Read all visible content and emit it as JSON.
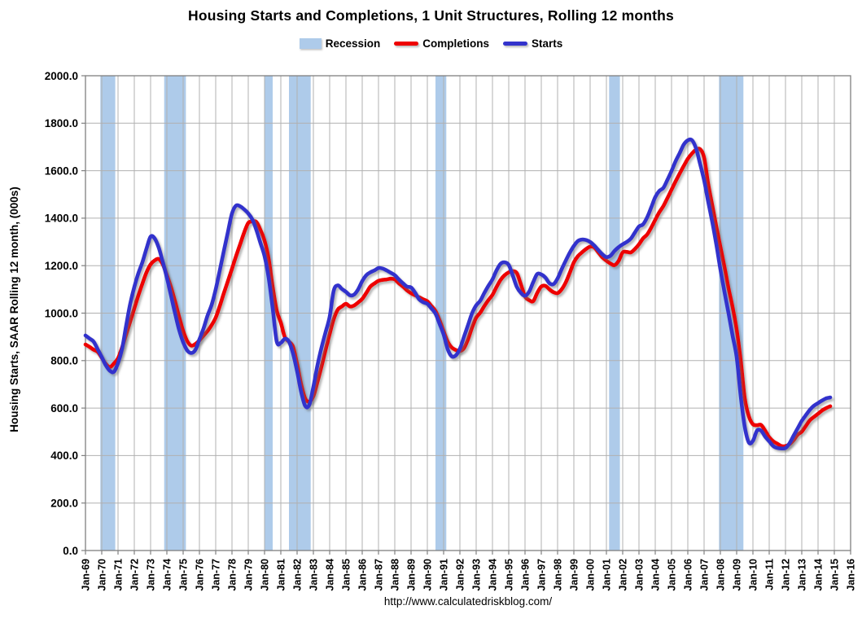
{
  "title": "Housing Starts and Completions, 1 Unit Structures, Rolling 12 months",
  "source_url": "http://www.calculatedriskblog.com/",
  "legend": {
    "items": [
      {
        "label": "Recession",
        "swatch": "box"
      },
      {
        "label": "Completions",
        "swatch": "line-red"
      },
      {
        "label": "Starts",
        "swatch": "line-blue"
      }
    ]
  },
  "colors": {
    "starts": "#3333CC",
    "completions": "#EE0000",
    "recession": "#AECBEA",
    "grid": "#B0B0B0",
    "border": "#808080",
    "text": "#000000"
  },
  "chart_data": {
    "type": "line",
    "title": "Housing Starts and Completions, 1 Unit Structures, Rolling 12 months",
    "xlabel": "",
    "ylabel": "Housing Starts, SAAR Rolling 12 month, (000s)",
    "xlim": [
      1969,
      2016
    ],
    "ylim": [
      0,
      2000
    ],
    "grid": true,
    "legend_position": "top",
    "y_ticks": [
      0,
      200,
      400,
      600,
      800,
      1000,
      1200,
      1400,
      1600,
      1800,
      2000
    ],
    "y_tick_labels": [
      "0.0",
      "200.0",
      "400.0",
      "600.0",
      "800.0",
      "1000.0",
      "1200.0",
      "1400.0",
      "1600.0",
      "1800.0",
      "2000.0"
    ],
    "x_ticks_years": [
      1969,
      1970,
      1971,
      1972,
      1973,
      1974,
      1975,
      1976,
      1977,
      1978,
      1979,
      1980,
      1981,
      1982,
      1983,
      1984,
      1985,
      1986,
      1987,
      1988,
      1989,
      1990,
      1991,
      1992,
      1993,
      1994,
      1995,
      1996,
      1997,
      1998,
      1999,
      2000,
      2001,
      2002,
      2003,
      2004,
      2005,
      2006,
      2007,
      2008,
      2009,
      2010,
      2011,
      2012,
      2013,
      2014,
      2015,
      2016
    ],
    "x_tick_labels": [
      "Jan-69",
      "Jan-70",
      "Jan-71",
      "Jan-72",
      "Jan-73",
      "Jan-74",
      "Jan-75",
      "Jan-76",
      "Jan-77",
      "Jan-78",
      "Jan-79",
      "Jan-80",
      "Jan-81",
      "Jan-82",
      "Jan-83",
      "Jan-84",
      "Jan-85",
      "Jan-86",
      "Jan-87",
      "Jan-88",
      "Jan-89",
      "Jan-90",
      "Jan-91",
      "Jan-92",
      "Jan-93",
      "Jan-94",
      "Jan-95",
      "Jan-96",
      "Jan-97",
      "Jan-98",
      "Jan-99",
      "Jan-00",
      "Jan-01",
      "Jan-02",
      "Jan-03",
      "Jan-04",
      "Jan-05",
      "Jan-06",
      "Jan-07",
      "Jan-08",
      "Jan-09",
      "Jan-10",
      "Jan-11",
      "Jan-12",
      "Jan-13",
      "Jan-14",
      "Jan-15",
      "Jan-16"
    ],
    "recession_bands": [
      [
        1969.917,
        1970.833
      ],
      [
        1973.833,
        1975.167
      ],
      [
        1980.0,
        1980.5
      ],
      [
        1981.5,
        1982.833
      ],
      [
        1990.5,
        1991.167
      ],
      [
        2001.167,
        2001.833
      ],
      [
        2007.917,
        2009.417
      ]
    ],
    "x_start": 1969.0,
    "x_step": 0.25,
    "series": [
      {
        "name": "Completions",
        "color_key": "completions",
        "values": [
          868,
          858,
          846,
          837,
          812,
          786,
          773,
          788,
          810,
          856,
          910,
          965,
          1020,
          1075,
          1125,
          1172,
          1205,
          1222,
          1228,
          1205,
          1160,
          1110,
          1050,
          985,
          925,
          882,
          863,
          870,
          885,
          905,
          925,
          950,
          981,
          1030,
          1084,
          1135,
          1187,
          1240,
          1290,
          1340,
          1380,
          1386,
          1384,
          1350,
          1305,
          1230,
          1110,
          1010,
          960,
          898,
          880,
          858,
          786,
          700,
          640,
          627,
          650,
          710,
          775,
          845,
          912,
          975,
          1015,
          1028,
          1039,
          1028,
          1032,
          1045,
          1060,
          1085,
          1112,
          1125,
          1136,
          1140,
          1142,
          1145,
          1142,
          1126,
          1112,
          1096,
          1084,
          1075,
          1067,
          1058,
          1050,
          1030,
          1009,
          970,
          923,
          880,
          855,
          845,
          840,
          852,
          890,
          940,
          981,
          1002,
          1030,
          1055,
          1077,
          1110,
          1140,
          1160,
          1172,
          1177,
          1168,
          1120,
          1070,
          1055,
          1050,
          1085,
          1112,
          1115,
          1100,
          1088,
          1084,
          1100,
          1129,
          1170,
          1214,
          1240,
          1256,
          1270,
          1280,
          1277,
          1256,
          1235,
          1221,
          1209,
          1202,
          1220,
          1256,
          1258,
          1256,
          1270,
          1290,
          1315,
          1331,
          1360,
          1393,
          1425,
          1451,
          1485,
          1520,
          1555,
          1588,
          1620,
          1650,
          1672,
          1688,
          1691,
          1655,
          1545,
          1455,
          1365,
          1280,
          1195,
          1105,
          1025,
          930,
          800,
          640,
          565,
          532,
          528,
          529,
          505,
          477,
          460,
          450,
          440,
          440,
          448,
          465,
          488,
          501,
          525,
          549,
          563,
          576,
          590,
          600,
          608
        ]
      },
      {
        "name": "Starts",
        "color_key": "starts",
        "values": [
          906,
          893,
          880,
          848,
          815,
          780,
          757,
          753,
          790,
          850,
          948,
          1040,
          1110,
          1168,
          1215,
          1272,
          1322,
          1315,
          1276,
          1215,
          1150,
          1075,
          1000,
          930,
          878,
          843,
          832,
          845,
          890,
          935,
          990,
          1035,
          1100,
          1180,
          1262,
          1342,
          1420,
          1453,
          1450,
          1437,
          1420,
          1395,
          1350,
          1295,
          1240,
          1150,
          1020,
          880,
          875,
          892,
          880,
          830,
          755,
          668,
          609,
          614,
          690,
          780,
          855,
          920,
          985,
          1095,
          1117,
          1102,
          1090,
          1075,
          1078,
          1100,
          1135,
          1160,
          1172,
          1180,
          1190,
          1188,
          1180,
          1170,
          1160,
          1142,
          1126,
          1112,
          1108,
          1086,
          1058,
          1046,
          1039,
          1020,
          998,
          955,
          910,
          848,
          818,
          822,
          850,
          900,
          950,
          1000,
          1033,
          1052,
          1085,
          1115,
          1142,
          1180,
          1208,
          1214,
          1203,
          1158,
          1110,
          1085,
          1073,
          1090,
          1130,
          1165,
          1163,
          1150,
          1126,
          1122,
          1146,
          1185,
          1221,
          1255,
          1283,
          1304,
          1310,
          1308,
          1300,
          1285,
          1266,
          1248,
          1236,
          1242,
          1262,
          1278,
          1290,
          1300,
          1314,
          1340,
          1365,
          1374,
          1403,
          1445,
          1489,
          1515,
          1528,
          1562,
          1599,
          1640,
          1674,
          1710,
          1728,
          1729,
          1695,
          1630,
          1560,
          1470,
          1385,
          1290,
          1185,
          1090,
          1000,
          905,
          815,
          650,
          520,
          455,
          462,
          505,
          505,
          480,
          460,
          440,
          432,
          430,
          432,
          452,
          484,
          515,
          546,
          570,
          593,
          610,
          621,
          632,
          641,
          645
        ]
      }
    ]
  }
}
